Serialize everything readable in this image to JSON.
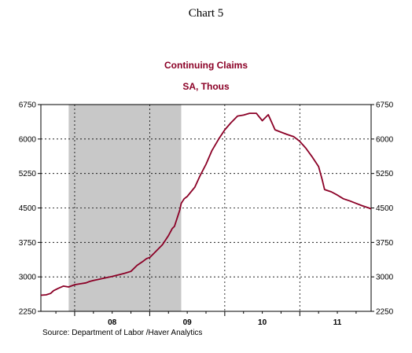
{
  "header": {
    "chart_number": "Chart 5",
    "title": "Continuing Claims",
    "subtitle": "SA, Thous"
  },
  "footer": {
    "source": "Source:  Department of Labor /Haver Analytics"
  },
  "colors": {
    "series": "#8b0026",
    "recession": "#c8c8c8",
    "title": "#8b0026"
  },
  "chart_data": {
    "type": "line",
    "title": "Continuing Claims",
    "subtitle": "SA, Thous",
    "x_unit": "year",
    "xlim": [
      2007.55,
      2011.95
    ],
    "ylim": [
      2250,
      6750
    ],
    "y_ticks": [
      2250,
      3000,
      3750,
      4500,
      5250,
      6000,
      6750
    ],
    "y_tick_labels": [
      "2250",
      "3000",
      "3750",
      "4500",
      "5250",
      "6000",
      "6750"
    ],
    "x_ticks": [
      2008,
      2009,
      2010,
      2011
    ],
    "x_tick_labels": [
      "08",
      "09",
      "10",
      "11"
    ],
    "right_axis": true,
    "grid": "dashed",
    "recession_shading": {
      "start": 2007.92,
      "end": 2009.42
    },
    "series": [
      {
        "x": [
          2007.55,
          2007.62,
          2007.68,
          2007.72,
          2007.78,
          2007.85,
          2007.92,
          2008.0,
          2008.08,
          2008.15,
          2008.2,
          2008.25,
          2008.33,
          2008.42,
          2008.5,
          2008.55,
          2008.6,
          2008.67,
          2008.75,
          2008.83,
          2008.92,
          2008.96,
          2009.0,
          2009.08,
          2009.17,
          2009.25,
          2009.3,
          2009.33,
          2009.37,
          2009.4,
          2009.42,
          2009.44,
          2009.46,
          2009.5,
          2009.55,
          2009.6,
          2009.67,
          2009.75,
          2009.83,
          2009.92,
          2010.0,
          2010.08,
          2010.17,
          2010.25,
          2010.33,
          2010.42,
          2010.5,
          2010.58,
          2010.67,
          2010.75,
          2010.83,
          2010.92,
          2011.0,
          2011.08,
          2011.17,
          2011.25,
          2011.3,
          2011.33,
          2011.42,
          2011.5,
          2011.58,
          2011.67,
          2011.75,
          2011.83,
          2011.92,
          2011.95
        ],
        "values": [
          2600,
          2610,
          2640,
          2700,
          2750,
          2800,
          2780,
          2830,
          2850,
          2870,
          2900,
          2920,
          2950,
          2980,
          3010,
          3030,
          3050,
          3080,
          3120,
          3250,
          3350,
          3400,
          3420,
          3550,
          3700,
          3900,
          4050,
          4100,
          4300,
          4450,
          4600,
          4650,
          4700,
          4750,
          4850,
          4950,
          5200,
          5450,
          5750,
          6000,
          6200,
          6350,
          6500,
          6520,
          6560,
          6560,
          6400,
          6530,
          6200,
          6150,
          6100,
          6050,
          5950,
          5800,
          5600,
          5400,
          5100,
          4900,
          4850,
          4780,
          4700,
          4650,
          4600,
          4550,
          4500,
          4480
        ]
      }
    ]
  }
}
